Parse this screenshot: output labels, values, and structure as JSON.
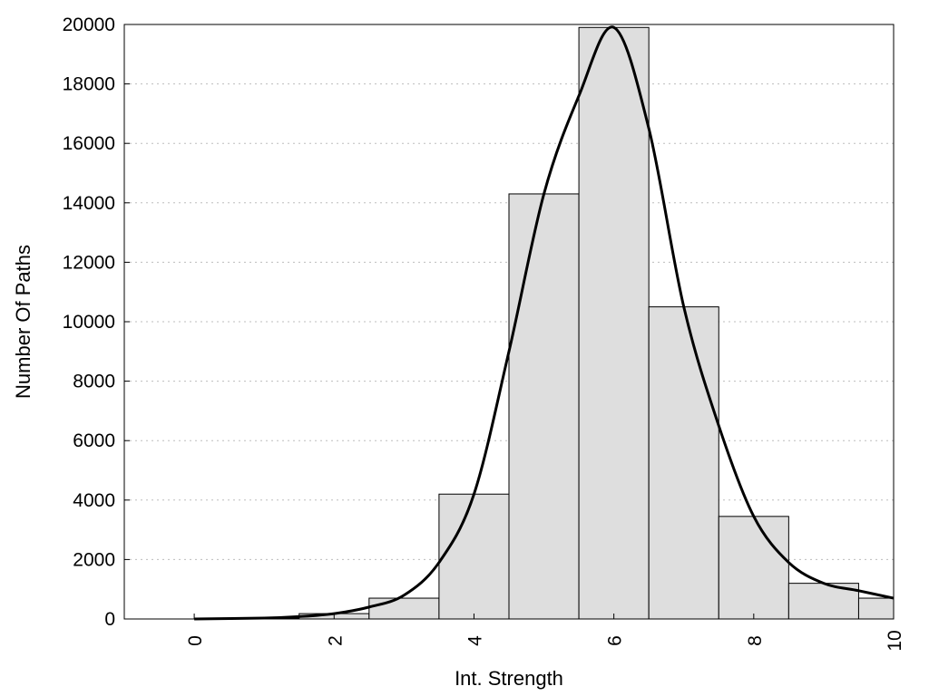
{
  "chart_data": {
    "type": "bar",
    "xlabel": "Int. Strength",
    "ylabel": "Number Of Paths",
    "xlim": [
      -1,
      10
    ],
    "ylim": [
      0,
      20000
    ],
    "xticks": [
      0,
      2,
      4,
      6,
      8,
      10
    ],
    "yticks": [
      0,
      2000,
      4000,
      6000,
      8000,
      10000,
      12000,
      14000,
      16000,
      18000,
      20000
    ],
    "grid": "horizontal dotted",
    "colors": {
      "bar_fill": "#dedede",
      "bar_edge": "#000000",
      "curve": "#000000"
    },
    "bars": {
      "x": [
        0,
        1,
        2,
        3,
        4,
        5,
        6,
        7,
        8,
        9,
        10
      ],
      "width": 1,
      "values": [
        0,
        30,
        180,
        700,
        4200,
        14300,
        19900,
        10500,
        3450,
        1200,
        700
      ]
    },
    "series": [
      {
        "type": "line",
        "x": [
          0,
          1,
          1.5,
          2,
          2.5,
          3,
          3.5,
          4,
          4.5,
          5,
          5.5,
          6,
          6.5,
          7,
          7.5,
          8,
          8.5,
          9,
          9.5,
          10
        ],
        "values": [
          0,
          30,
          80,
          180,
          400,
          800,
          1900,
          4200,
          9000,
          14300,
          17600,
          19900,
          16500,
          10500,
          6500,
          3450,
          1900,
          1200,
          950,
          700
        ]
      }
    ]
  }
}
